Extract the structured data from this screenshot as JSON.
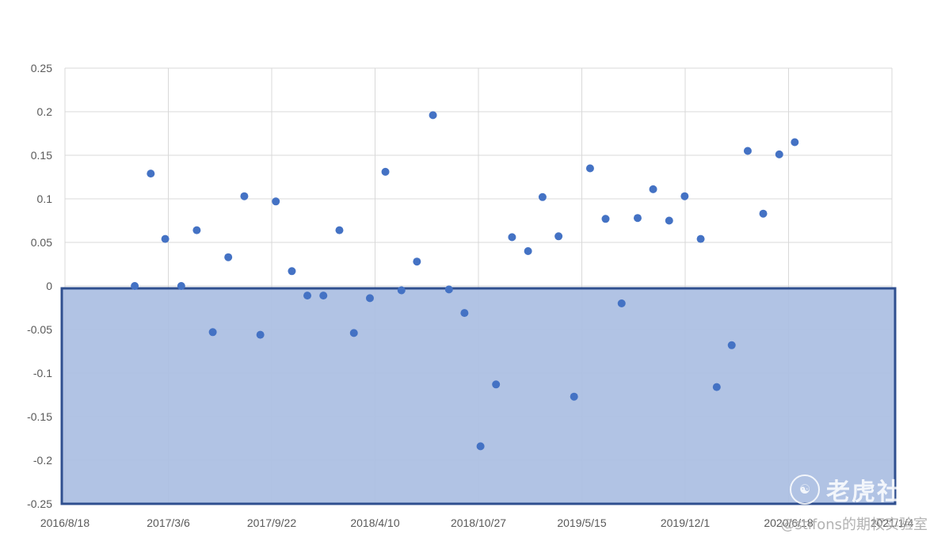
{
  "chart_data": {
    "type": "scatter",
    "x_axis": {
      "type": "date",
      "min": "2016-08-18",
      "max": "2021-01-04",
      "tick_labels": [
        "2016/8/18",
        "2017/3/6",
        "2017/9/22",
        "2018/4/10",
        "2018/10/27",
        "2019/5/15",
        "2019/12/1",
        "2020/6/18",
        "2021/1/4"
      ]
    },
    "y_axis": {
      "min": -0.25,
      "max": 0.25,
      "step": 0.05,
      "tick_labels": [
        "0.25",
        "0.2",
        "0.15",
        "0.1",
        "0.05",
        "0",
        "-0.05",
        "-0.1",
        "-0.15",
        "-0.2",
        "-0.25"
      ]
    },
    "grid": true,
    "highlight_region": {
      "y_from": 0,
      "y_to": -0.25,
      "fill": "#adc0e3",
      "border": "#2f4f8f"
    },
    "marker_color": "#4472c4",
    "points": [
      {
        "x": "2016-12-31",
        "y": 0.0
      },
      {
        "x": "2017-01-31",
        "y": 0.129
      },
      {
        "x": "2017-02-28",
        "y": 0.054
      },
      {
        "x": "2017-03-31",
        "y": 0.0
      },
      {
        "x": "2017-04-30",
        "y": 0.064
      },
      {
        "x": "2017-05-31",
        "y": -0.053
      },
      {
        "x": "2017-06-30",
        "y": 0.033
      },
      {
        "x": "2017-07-31",
        "y": 0.103
      },
      {
        "x": "2017-08-31",
        "y": -0.056
      },
      {
        "x": "2017-09-30",
        "y": 0.097
      },
      {
        "x": "2017-10-31",
        "y": 0.017
      },
      {
        "x": "2017-11-30",
        "y": -0.011
      },
      {
        "x": "2017-12-31",
        "y": -0.011
      },
      {
        "x": "2018-01-31",
        "y": 0.064
      },
      {
        "x": "2018-02-28",
        "y": -0.054
      },
      {
        "x": "2018-03-31",
        "y": -0.014
      },
      {
        "x": "2018-04-30",
        "y": 0.131
      },
      {
        "x": "2018-05-31",
        "y": -0.005
      },
      {
        "x": "2018-06-30",
        "y": 0.028
      },
      {
        "x": "2018-07-31",
        "y": 0.196
      },
      {
        "x": "2018-08-31",
        "y": -0.004
      },
      {
        "x": "2018-09-30",
        "y": -0.031
      },
      {
        "x": "2018-10-31",
        "y": -0.184
      },
      {
        "x": "2018-11-30",
        "y": -0.113
      },
      {
        "x": "2018-12-31",
        "y": 0.056
      },
      {
        "x": "2019-01-31",
        "y": 0.04
      },
      {
        "x": "2019-02-28",
        "y": 0.102
      },
      {
        "x": "2019-03-31",
        "y": 0.057
      },
      {
        "x": "2019-04-30",
        "y": -0.127
      },
      {
        "x": "2019-05-31",
        "y": 0.135
      },
      {
        "x": "2019-06-30",
        "y": 0.077
      },
      {
        "x": "2019-07-31",
        "y": -0.02
      },
      {
        "x": "2019-08-31",
        "y": 0.078
      },
      {
        "x": "2019-09-30",
        "y": 0.111
      },
      {
        "x": "2019-10-31",
        "y": 0.075
      },
      {
        "x": "2019-11-30",
        "y": 0.103
      },
      {
        "x": "2019-12-31",
        "y": 0.054
      },
      {
        "x": "2020-01-31",
        "y": -0.116
      },
      {
        "x": "2020-02-29",
        "y": -0.068
      },
      {
        "x": "2020-03-31",
        "y": 0.155
      },
      {
        "x": "2020-04-30",
        "y": 0.083
      },
      {
        "x": "2020-05-31",
        "y": 0.151
      },
      {
        "x": "2020-06-30",
        "y": 0.165
      }
    ]
  },
  "watermark": {
    "brand": "老虎社区",
    "logo_icon": "tiger-logo-icon",
    "subtitle": "@stifons的期权实验室"
  }
}
